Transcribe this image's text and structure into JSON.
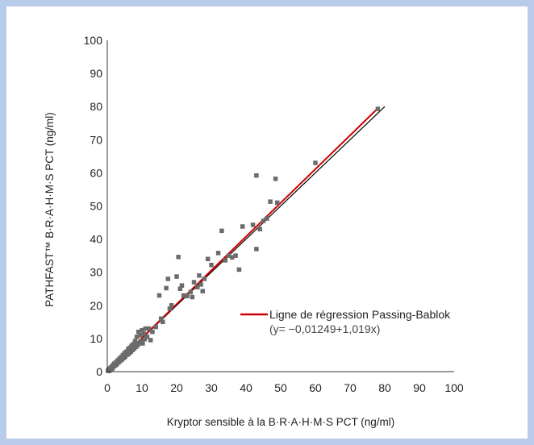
{
  "chart_data": {
    "type": "scatter",
    "title": "",
    "xlabel": "Kryptor sensible à la B·R·A·H·M·S PCT (ng/ml)",
    "ylabel": "PATHFAST™ B·R·A·H·M·S PCT (ng/ml)",
    "xlim": [
      0,
      100
    ],
    "ylim": [
      0,
      100
    ],
    "x_ticks": [
      0,
      10,
      20,
      30,
      40,
      50,
      60,
      70,
      80,
      90,
      100
    ],
    "y_ticks": [
      0,
      10,
      20,
      30,
      40,
      50,
      60,
      70,
      80,
      90,
      100
    ],
    "grid": false,
    "legend_position": "center-right",
    "marker_color": "#6b6b6b",
    "points": [
      [
        0.2,
        0.3
      ],
      [
        0.4,
        0.6
      ],
      [
        0.5,
        0.2
      ],
      [
        0.7,
        0.9
      ],
      [
        0.8,
        0.5
      ],
      [
        1,
        1.2
      ],
      [
        1.1,
        0.8
      ],
      [
        1.3,
        1.5
      ],
      [
        1.5,
        1
      ],
      [
        1.7,
        2
      ],
      [
        1.9,
        1.6
      ],
      [
        2,
        2.4
      ],
      [
        2.3,
        1.9
      ],
      [
        2.5,
        2.8
      ],
      [
        2.7,
        2.2
      ],
      [
        3,
        3.4
      ],
      [
        3.2,
        2.7
      ],
      [
        3.5,
        3.9
      ],
      [
        3.7,
        3.2
      ],
      [
        4,
        4.4
      ],
      [
        4.2,
        3.6
      ],
      [
        4.5,
        5
      ],
      [
        4.8,
        4.1
      ],
      [
        5,
        5.6
      ],
      [
        5.2,
        4.6
      ],
      [
        5.5,
        6
      ],
      [
        5.8,
        5.1
      ],
      [
        6,
        6.8
      ],
      [
        6.3,
        5.5
      ],
      [
        6.5,
        7.2
      ],
      [
        6.8,
        6
      ],
      [
        7,
        7.8
      ],
      [
        7.3,
        6.5
      ],
      [
        7.5,
        8.3
      ],
      [
        7.8,
        7
      ],
      [
        8,
        9.2
      ],
      [
        8.3,
        7.5
      ],
      [
        8.5,
        10.5
      ],
      [
        8.8,
        8
      ],
      [
        9,
        12
      ],
      [
        9.3,
        8.6
      ],
      [
        9.5,
        11
      ],
      [
        9.8,
        9.2
      ],
      [
        10,
        12.5
      ],
      [
        10.2,
        8.5
      ],
      [
        10.5,
        11.5
      ],
      [
        10.8,
        9.8
      ],
      [
        11,
        13
      ],
      [
        11.5,
        10.5
      ],
      [
        12,
        13
      ],
      [
        12.5,
        9.5
      ],
      [
        13,
        12
      ],
      [
        14,
        13.5
      ],
      [
        15,
        23
      ],
      [
        15.5,
        16
      ],
      [
        16,
        15
      ],
      [
        17,
        25.2
      ],
      [
        17.5,
        28
      ],
      [
        18,
        19
      ],
      [
        18.5,
        20
      ],
      [
        20,
        28.7
      ],
      [
        20.5,
        34.6
      ],
      [
        21,
        25
      ],
      [
        21.5,
        26
      ],
      [
        22,
        23
      ],
      [
        23,
        22.8
      ],
      [
        24,
        24
      ],
      [
        24.5,
        22.5
      ],
      [
        25,
        27
      ],
      [
        26,
        25.5
      ],
      [
        26.5,
        29
      ],
      [
        27,
        26.3
      ],
      [
        27.5,
        24.3
      ],
      [
        28,
        28
      ],
      [
        29,
        34
      ],
      [
        30,
        32.2
      ],
      [
        32,
        35.8
      ],
      [
        33,
        42.5
      ],
      [
        34,
        33.6
      ],
      [
        35,
        35
      ],
      [
        36,
        34.5
      ],
      [
        37,
        35
      ],
      [
        38,
        30.8
      ],
      [
        39,
        43.8
      ],
      [
        42,
        44.3
      ],
      [
        43,
        37
      ],
      [
        43,
        59.2
      ],
      [
        44,
        43
      ],
      [
        45,
        45.5
      ],
      [
        46,
        46.2
      ],
      [
        47,
        51.3
      ],
      [
        48.5,
        58.2
      ],
      [
        49,
        51
      ],
      [
        60,
        63
      ],
      [
        78,
        79.3
      ]
    ],
    "series": [
      {
        "type": "line",
        "color": "#cc0000",
        "intercept": -0.01249,
        "slope": 1.019,
        "x_range": [
          0,
          78
        ]
      },
      {
        "type": "line",
        "color": "#000000",
        "intercept": 0,
        "slope": 1,
        "x_range": [
          0,
          80
        ]
      }
    ],
    "legend": {
      "label": "Ligne de régression Passing-Bablok",
      "equation": "(y= −0,01249+1,019x)",
      "color": "#cc0000"
    }
  }
}
